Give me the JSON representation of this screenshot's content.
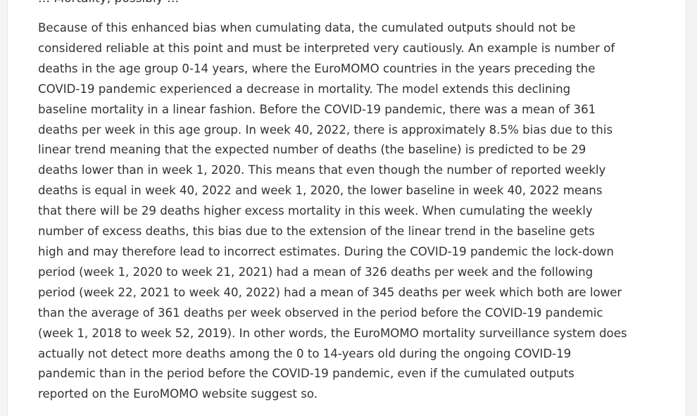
{
  "article": {
    "partial_top_line": "… Mortality, possibly …",
    "lines": [
      "Because of this enhanced bias when cumulating data, the cumulated outputs should not be",
      "considered reliable at this point and must be interpreted very cautiously. An example is number of",
      "deaths in the age group 0-14 years, where the EuroMOMO countries in the years preceding the",
      "COVID-19 pandemic experienced a decrease in mortality. The model extends this declining",
      "baseline mortality in a linear fashion. Before the COVID-19 pandemic, there was a mean of 361",
      "deaths per week in this age group. In week 40, 2022, there is approximately 8.5% bias due to this",
      "linear trend meaning that the expected number of deaths (the baseline) is predicted to be 29",
      "deaths lower than in week 1, 2020. This means that even though the number of reported weekly",
      "deaths is equal in week 40, 2022 and week 1, 2020, the lower baseline in week 40, 2022 means",
      "that there will be 29 deaths higher excess mortality in this week. When cumulating the weekly",
      "number of excess deaths, this bias due to the extension of the linear trend in the baseline gets",
      "high and may therefore lead to incorrect estimates. During the COVID-19 pandemic the lock-down",
      "period (week 1, 2020 to week 21, 2021) had a mean of 326 deaths per week and the following",
      "period (week 22, 2021 to week 40, 2022) had a mean of 345 deaths per week which both are lower",
      "than the average of 361 deaths per week observed in the period before the COVID-19 pandemic",
      "(week 1, 2018 to week 52, 2019). In other words, the EuroMOMO mortality surveillance system does",
      "actually not detect more deaths among the 0 to 14-years old during the ongoing COVID-19",
      "pandemic than in the period before the COVID-19 pandemic, even if the cumulated outputs",
      "reported on the EuroMOMO website suggest so."
    ]
  }
}
